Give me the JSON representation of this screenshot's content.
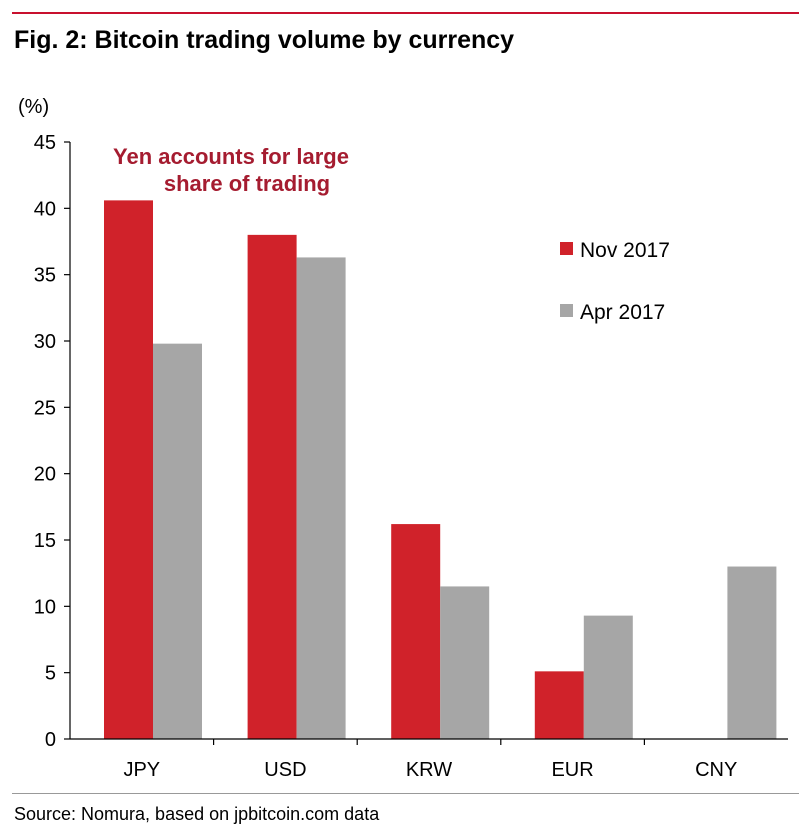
{
  "title": "Fig. 2: Bitcoin trading volume by currency",
  "source": "Source: Nomura, based on jpbitcoin.com data",
  "colors": {
    "nov": "#d0222a",
    "apr": "#a6a6a6",
    "annotation": "#a51c30",
    "rule": "#c8102e"
  },
  "chart_data": {
    "type": "bar",
    "ylabel": "(%)",
    "ylim": [
      0,
      45
    ],
    "yticks": [
      "0",
      "5",
      "10",
      "15",
      "20",
      "25",
      "30",
      "35",
      "40",
      "45"
    ],
    "categories": [
      "JPY",
      "USD",
      "KRW",
      "EUR",
      "CNY"
    ],
    "series": [
      {
        "name": "Nov 2017",
        "values": [
          40.6,
          38.0,
          16.2,
          5.1,
          0
        ]
      },
      {
        "name": "Apr 2017",
        "values": [
          29.8,
          36.3,
          11.5,
          9.3,
          13.0
        ]
      }
    ],
    "annotation": [
      "Yen accounts for large",
      "share of trading"
    ],
    "legend_position": "right",
    "grid": false
  }
}
